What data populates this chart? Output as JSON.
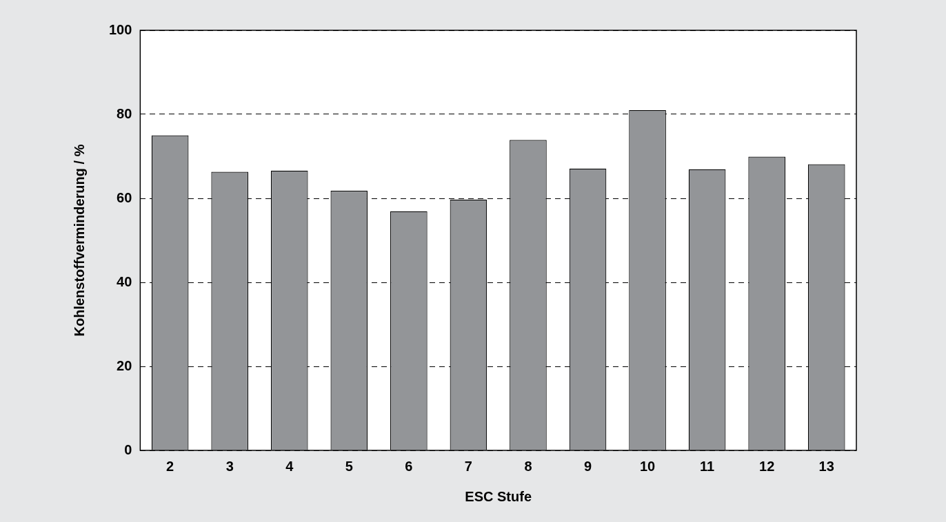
{
  "chart_data": {
    "type": "bar",
    "xlabel": "ESC Stufe",
    "ylabel": "Kohlenstoffverminderung / %",
    "categories": [
      "2",
      "3",
      "4",
      "5",
      "6",
      "7",
      "8",
      "9",
      "10",
      "11",
      "12",
      "13"
    ],
    "values": [
      75.0,
      66.3,
      66.6,
      61.8,
      56.9,
      59.7,
      73.9,
      67.1,
      81.0,
      66.9,
      69.9,
      68.1
    ],
    "color": "#939598",
    "ylim": [
      0,
      100
    ],
    "yticks": [
      0,
      20,
      40,
      60,
      80,
      100
    ],
    "grid": "y",
    "legend": false
  }
}
